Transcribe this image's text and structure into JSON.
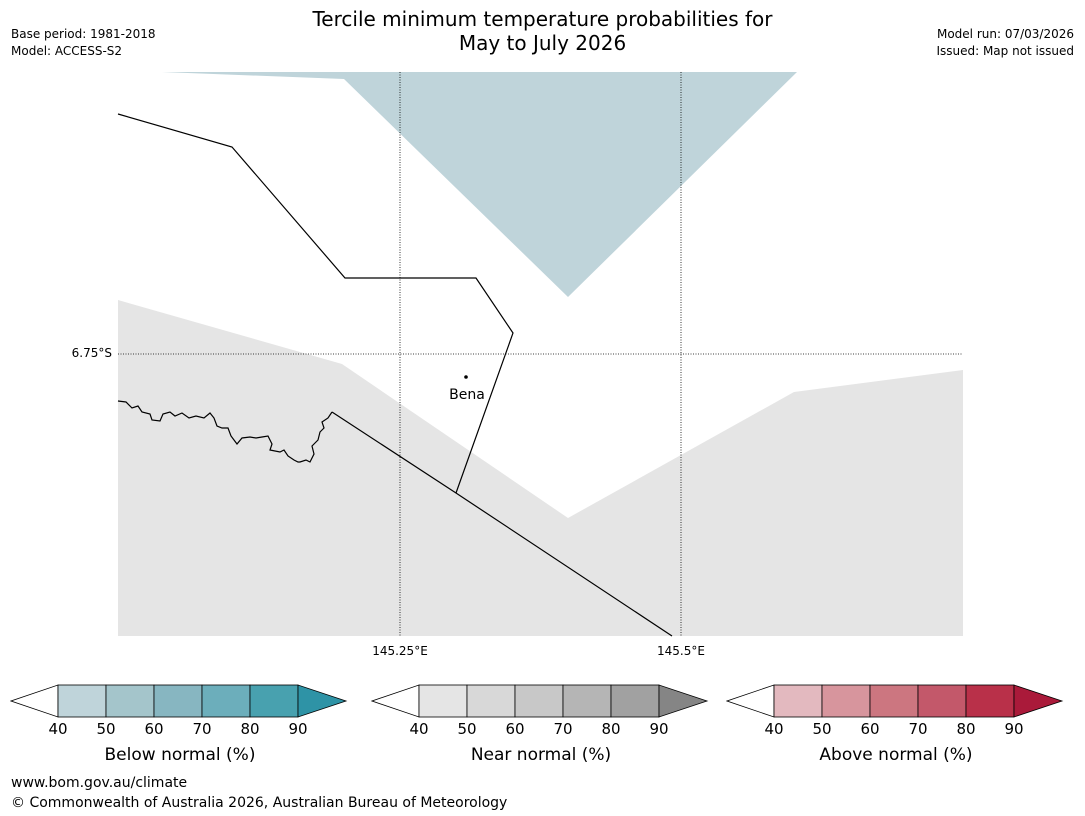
{
  "header": {
    "title_line1": "Tercile minimum temperature probabilities for",
    "title_line2": "May to July 2026",
    "base_period": "Base period: 1981-2018",
    "model": "Model: ACCESS-S2",
    "model_run": "Model run: 07/03/2026",
    "issued": "Issued: Map not issued"
  },
  "map": {
    "place_label": "Bena",
    "lat_label": "6.75°S",
    "lon_labels": [
      "145.25°E",
      "145.5°E"
    ]
  },
  "legends": [
    {
      "title": "Below normal (%)",
      "ticks": [
        "40",
        "50",
        "60",
        "70",
        "80",
        "90"
      ],
      "colors": [
        "#bfd4da",
        "#a4c5cb",
        "#87b6c1",
        "#6caebb",
        "#48a1af",
        "#2e93a6"
      ]
    },
    {
      "title": "Near normal (%)",
      "ticks": [
        "40",
        "50",
        "60",
        "70",
        "80",
        "90"
      ],
      "colors": [
        "#e5e5e5",
        "#d8d8d8",
        "#c8c8c8",
        "#b5b5b5",
        "#a1a1a1",
        "#858585"
      ]
    },
    {
      "title": "Above normal (%)",
      "ticks": [
        "40",
        "50",
        "60",
        "70",
        "80",
        "90"
      ],
      "colors": [
        "#e3b9bf",
        "#d7959d",
        "#cc7680",
        "#c3586a",
        "#b93049",
        "#aa1a3a"
      ]
    }
  ],
  "footer": {
    "url": "www.bom.gov.au/climate",
    "copyright": "© Commonwealth of Australia 2026, Australian Bureau of Meteorology"
  }
}
